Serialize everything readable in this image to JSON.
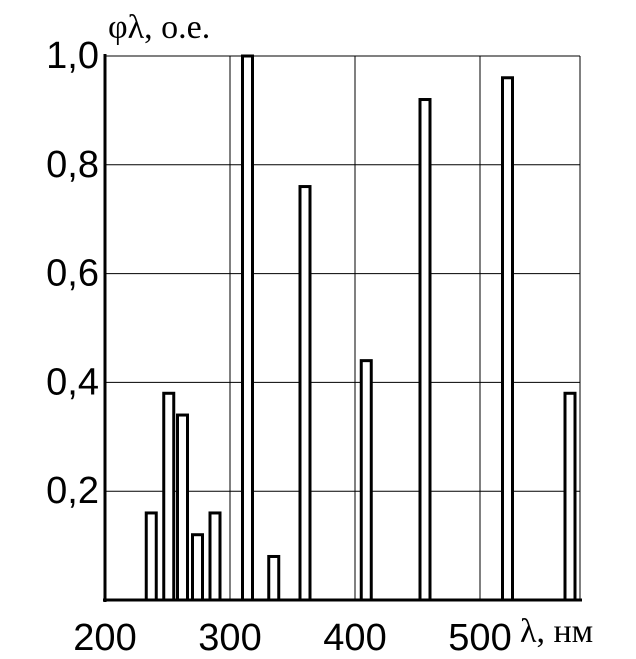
{
  "chart_data": {
    "type": "bar",
    "x": [
      237,
      251,
      262,
      274,
      288,
      314,
      335,
      360,
      409,
      456,
      522,
      572
    ],
    "values": [
      0.16,
      0.38,
      0.34,
      0.12,
      0.16,
      1.0,
      0.08,
      0.76,
      0.44,
      0.92,
      0.96,
      0.38
    ],
    "xlabel": "λ, нм",
    "ylabel": "φλ, о.е.",
    "xlim": [
      200,
      580
    ],
    "ylim": [
      0,
      1.0
    ],
    "x_ticks": [
      200,
      300,
      400,
      500
    ],
    "x_tick_labels": [
      "200",
      "300",
      "400",
      "500"
    ],
    "y_ticks": [
      0.2,
      0.4,
      0.6,
      0.8,
      1.0
    ],
    "y_tick_labels": [
      "0,2",
      "0,4",
      "0,6",
      "0,8",
      "1,0"
    ],
    "grid": true,
    "colors": {
      "bar_fill": "#ffffff",
      "bar_stroke": "#000000",
      "grid": "#000000"
    }
  }
}
